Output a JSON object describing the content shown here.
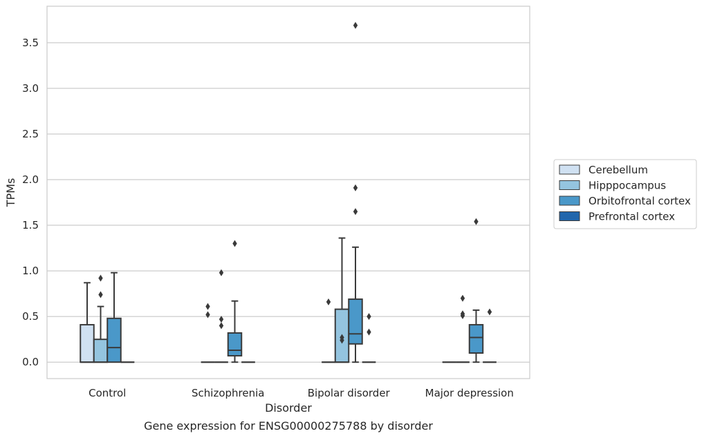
{
  "chart_data": {
    "type": "boxplot",
    "title": "Gene expression for ENSG00000275788 by disorder",
    "xlabel": "Disorder",
    "ylabel": "TPMs",
    "ylim": [
      -0.18,
      3.9
    ],
    "yticks": [
      0.0,
      0.5,
      1.0,
      1.5,
      2.0,
      2.5,
      3.0,
      3.5
    ],
    "ytick_labels": [
      "0.0",
      "0.5",
      "1.0",
      "1.5",
      "2.0",
      "2.5",
      "3.0",
      "3.5"
    ],
    "grid": "horizontal",
    "legend_placement": "outside-right",
    "categories": [
      "Control",
      "Schizophrenia",
      "Bipolar disorder",
      "Major depression"
    ],
    "series": [
      {
        "name": "Cerebellum",
        "color": "#d0e1f2",
        "boxes": [
          {
            "min": 0.0,
            "q1": 0.0,
            "median": 0.0,
            "q3": 0.41,
            "max": 0.87,
            "outliers": []
          },
          {
            "min": 0.0,
            "q1": 0.0,
            "median": 0.0,
            "q3": 0.0,
            "max": 0.0,
            "outliers": [
              0.61,
              0.52
            ]
          },
          {
            "min": 0.0,
            "q1": 0.0,
            "median": 0.0,
            "q3": 0.0,
            "max": 0.0,
            "outliers": [
              0.66
            ]
          },
          {
            "min": 0.0,
            "q1": 0.0,
            "median": 0.0,
            "q3": 0.0,
            "max": 0.0,
            "outliers": []
          }
        ]
      },
      {
        "name": "Hipppocampus",
        "color": "#94c4df",
        "boxes": [
          {
            "min": 0.0,
            "q1": 0.0,
            "median": 0.0,
            "q3": 0.25,
            "max": 0.61,
            "outliers": [
              0.92,
              0.74
            ]
          },
          {
            "min": 0.0,
            "q1": 0.0,
            "median": 0.0,
            "q3": 0.0,
            "max": 0.0,
            "outliers": [
              0.98,
              0.47,
              0.4
            ]
          },
          {
            "min": 0.0,
            "q1": 0.0,
            "median": 0.0,
            "q3": 0.58,
            "max": 1.36,
            "outliers": [
              0.27,
              0.24
            ]
          },
          {
            "min": 0.0,
            "q1": 0.0,
            "median": 0.0,
            "q3": 0.0,
            "max": 0.0,
            "outliers": [
              0.7,
              0.53,
              0.51
            ]
          }
        ]
      },
      {
        "name": "Orbitofrontal cortex",
        "color": "#4a98c9",
        "boxes": [
          {
            "min": 0.0,
            "q1": 0.0,
            "median": 0.16,
            "q3": 0.48,
            "max": 0.98,
            "outliers": []
          },
          {
            "min": 0.0,
            "q1": 0.07,
            "median": 0.13,
            "q3": 0.32,
            "max": 0.67,
            "outliers": [
              1.3
            ]
          },
          {
            "min": 0.0,
            "q1": 0.2,
            "median": 0.31,
            "q3": 0.69,
            "max": 1.26,
            "outliers": [
              3.69,
              1.91,
              1.65
            ]
          },
          {
            "min": 0.0,
            "q1": 0.1,
            "median": 0.27,
            "q3": 0.41,
            "max": 0.57,
            "outliers": [
              1.54
            ]
          }
        ]
      },
      {
        "name": "Prefrontal cortex",
        "color": "#2166ac",
        "boxes": [
          {
            "min": 0.0,
            "q1": 0.0,
            "median": 0.0,
            "q3": 0.0,
            "max": 0.0,
            "outliers": []
          },
          {
            "min": 0.0,
            "q1": 0.0,
            "median": 0.0,
            "q3": 0.0,
            "max": 0.0,
            "outliers": []
          },
          {
            "min": 0.0,
            "q1": 0.0,
            "median": 0.0,
            "q3": 0.0,
            "max": 0.0,
            "outliers": [
              0.5,
              0.33
            ]
          },
          {
            "min": 0.0,
            "q1": 0.0,
            "median": 0.0,
            "q3": 0.0,
            "max": 0.0,
            "outliers": [
              0.55
            ]
          }
        ]
      }
    ]
  }
}
